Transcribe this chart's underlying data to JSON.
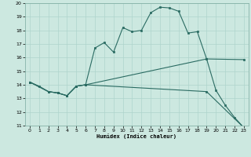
{
  "xlabel": "Humidex (Indice chaleur)",
  "ylabel": "",
  "xlim": [
    -0.5,
    23.5
  ],
  "ylim": [
    11,
    20
  ],
  "xticks": [
    0,
    1,
    2,
    3,
    4,
    5,
    6,
    7,
    8,
    9,
    10,
    11,
    12,
    13,
    14,
    15,
    16,
    17,
    18,
    19,
    20,
    21,
    22,
    23
  ],
  "yticks": [
    11,
    12,
    13,
    14,
    15,
    16,
    17,
    18,
    19,
    20
  ],
  "bg_color": "#cce8e0",
  "line_color": "#2a6b62",
  "grid_color": "#afd4cc",
  "line1_x": [
    0,
    1,
    2,
    3,
    4,
    5,
    6,
    7,
    8,
    9,
    10,
    11,
    12,
    13,
    14,
    15,
    16,
    17,
    18,
    19,
    20,
    21,
    22,
    23
  ],
  "line1_y": [
    14.2,
    13.9,
    13.5,
    13.4,
    13.2,
    13.9,
    14.0,
    16.7,
    17.1,
    16.4,
    18.2,
    17.9,
    18.0,
    19.3,
    19.7,
    19.65,
    19.4,
    17.8,
    17.9,
    15.9,
    13.6,
    12.5,
    11.6,
    10.85
  ],
  "line2_x": [
    0,
    2,
    3,
    4,
    5,
    6,
    19,
    23
  ],
  "line2_y": [
    14.2,
    13.5,
    13.4,
    13.2,
    13.9,
    14.0,
    15.9,
    15.85
  ],
  "line3_x": [
    0,
    2,
    3,
    4,
    5,
    6,
    19,
    23
  ],
  "line3_y": [
    14.2,
    13.5,
    13.4,
    13.2,
    13.9,
    14.0,
    13.5,
    10.85
  ]
}
